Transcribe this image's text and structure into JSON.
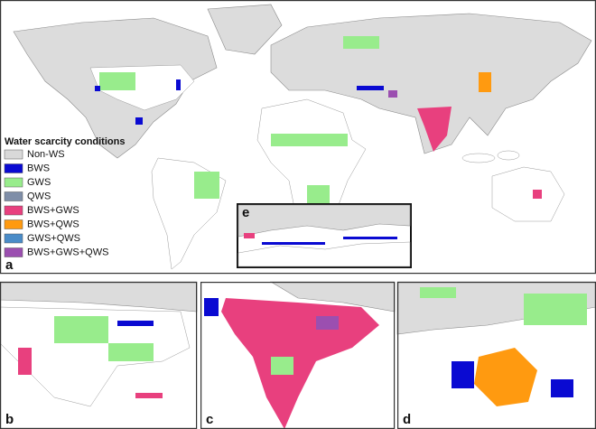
{
  "legend": {
    "title": "Water scarcity conditions",
    "items": [
      {
        "label": "Non-WS",
        "color": "#d9d9d9"
      },
      {
        "label": "BWS",
        "color": "#0a0ad2"
      },
      {
        "label": "GWS",
        "color": "#98ec8c"
      },
      {
        "label": "QWS",
        "color": "#7f8ea8"
      },
      {
        "label": "BWS+GWS",
        "color": "#e8407e"
      },
      {
        "label": "BWS+QWS",
        "color": "#ff9a10"
      },
      {
        "label": "GWS+QWS",
        "color": "#4a8cc8"
      },
      {
        "label": "BWS+GWS+QWS",
        "color": "#9b4fb0"
      }
    ]
  },
  "panels": [
    "a",
    "b",
    "c",
    "d",
    "e"
  ]
}
